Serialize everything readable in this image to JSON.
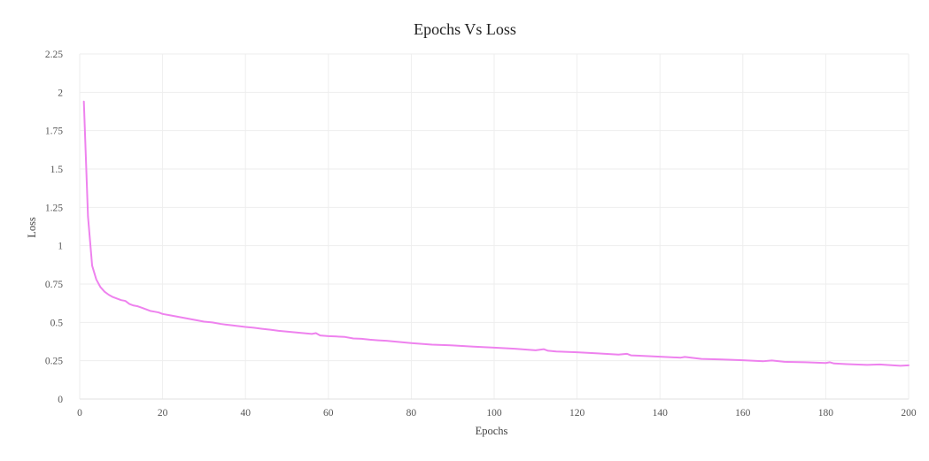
{
  "chart_data": {
    "type": "line",
    "title": "Epochs Vs Loss",
    "xlabel": "Epochs",
    "ylabel": "Loss",
    "xlim": [
      0,
      200
    ],
    "ylim": [
      0,
      2.25
    ],
    "grid": true,
    "line_color": "#ee82ee",
    "x_ticks": [
      0,
      20,
      40,
      60,
      80,
      100,
      120,
      140,
      160,
      180,
      200
    ],
    "y_ticks": [
      0,
      0.25,
      0.5,
      0.75,
      1,
      1.25,
      1.5,
      1.75,
      2,
      2.25
    ],
    "series": [
      {
        "name": "Loss",
        "x": [
          1,
          2,
          3,
          4,
          5,
          6,
          7,
          8,
          9,
          10,
          11,
          12,
          13,
          14,
          15,
          16,
          17,
          18,
          19,
          20,
          22,
          24,
          26,
          28,
          30,
          32,
          34,
          36,
          38,
          40,
          42,
          44,
          46,
          48,
          50,
          52,
          54,
          56,
          57,
          58,
          60,
          62,
          64,
          66,
          68,
          70,
          72,
          74,
          76,
          78,
          80,
          85,
          90,
          95,
          100,
          105,
          110,
          112,
          113,
          115,
          120,
          125,
          130,
          132,
          133,
          135,
          140,
          145,
          146,
          150,
          155,
          160,
          165,
          167,
          170,
          175,
          180,
          181,
          182,
          185,
          190,
          193,
          195,
          198,
          200
        ],
        "values": [
          1.94,
          1.19,
          0.87,
          0.78,
          0.73,
          0.7,
          0.68,
          0.665,
          0.655,
          0.645,
          0.64,
          0.62,
          0.61,
          0.605,
          0.595,
          0.585,
          0.575,
          0.57,
          0.565,
          0.555,
          0.545,
          0.535,
          0.525,
          0.515,
          0.505,
          0.5,
          0.49,
          0.483,
          0.477,
          0.47,
          0.465,
          0.458,
          0.452,
          0.445,
          0.44,
          0.435,
          0.43,
          0.425,
          0.43,
          0.415,
          0.41,
          0.408,
          0.405,
          0.395,
          0.393,
          0.387,
          0.383,
          0.38,
          0.375,
          0.37,
          0.365,
          0.355,
          0.35,
          0.342,
          0.335,
          0.328,
          0.318,
          0.325,
          0.315,
          0.31,
          0.305,
          0.298,
          0.29,
          0.295,
          0.285,
          0.283,
          0.276,
          0.27,
          0.275,
          0.262,
          0.258,
          0.253,
          0.247,
          0.252,
          0.243,
          0.24,
          0.235,
          0.24,
          0.232,
          0.228,
          0.223,
          0.226,
          0.222,
          0.217,
          0.22
        ]
      }
    ]
  }
}
